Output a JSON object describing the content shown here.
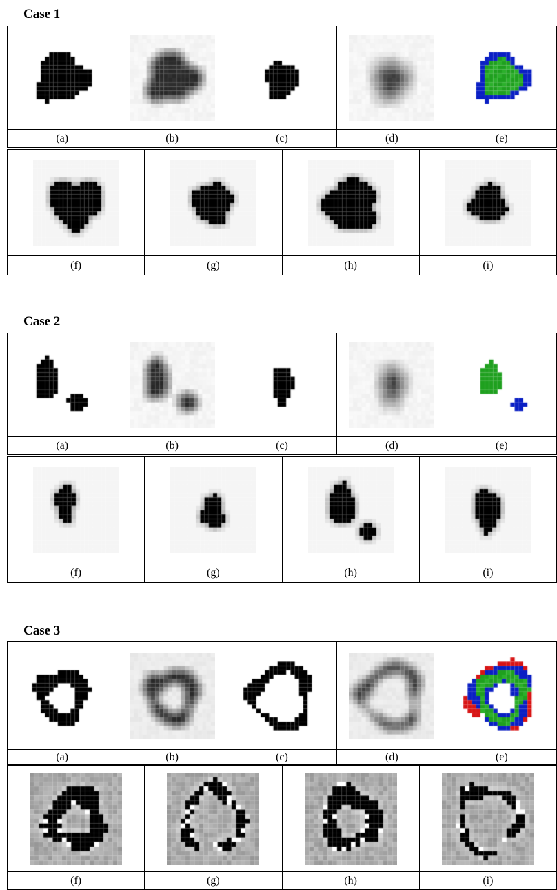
{
  "cases": [
    {
      "title": "Case 1",
      "row1_labels": [
        "(a)",
        "(b)",
        "(c)",
        "(d)",
        "(e)"
      ],
      "row2_labels": [
        "(f)",
        "(g)",
        "(h)",
        "(i)"
      ]
    },
    {
      "title": "Case 2",
      "row1_labels": [
        "(a)",
        "(b)",
        "(c)",
        "(d)",
        "(e)"
      ],
      "row2_labels": [
        "(f)",
        "(g)",
        "(h)",
        "(i)"
      ]
    },
    {
      "title": "Case 3",
      "row1_labels": [
        "(a)",
        "(b)",
        "(c)",
        "(d)",
        "(e)"
      ],
      "row2_labels": [
        "(f)",
        "(g)",
        "(h)",
        "(i)"
      ]
    }
  ],
  "colors": {
    "ink": "#000000",
    "green": "#1fa01f",
    "blue": "#0a1fc4",
    "red": "#d81414"
  }
}
